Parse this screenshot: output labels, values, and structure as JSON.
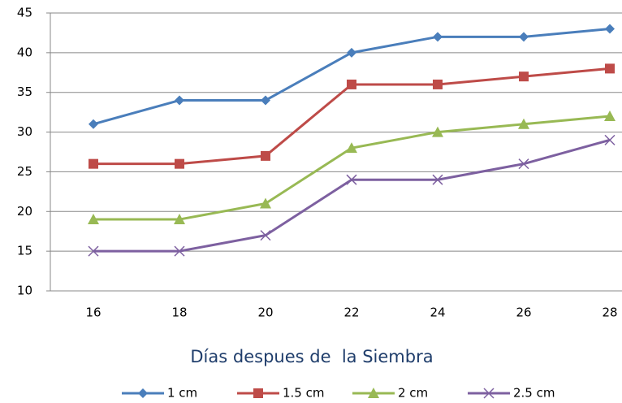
{
  "chart_data": {
    "type": "line",
    "x_label": "Días despues de  la Siembra",
    "categories": [
      16,
      18,
      20,
      22,
      24,
      26,
      28
    ],
    "series": [
      {
        "name": "1 cm",
        "color": "#4a7ebb",
        "marker": "diamond",
        "values": [
          31,
          34,
          34,
          40,
          42,
          42,
          43
        ]
      },
      {
        "name": "1.5 cm",
        "color": "#be4b48",
        "marker": "square",
        "values": [
          26,
          26,
          27,
          36,
          36,
          37,
          38
        ]
      },
      {
        "name": "2 cm",
        "color": "#98b954",
        "marker": "triangle",
        "values": [
          19,
          19,
          21,
          28,
          30,
          31,
          32
        ]
      },
      {
        "name": "2.5 cm",
        "color": "#7d60a0",
        "marker": "x",
        "values": [
          15,
          15,
          17,
          24,
          24,
          26,
          29
        ]
      }
    ],
    "ylim": [
      10,
      45
    ],
    "yticks": [
      10,
      15,
      20,
      25,
      30,
      35,
      40,
      45
    ],
    "grid": true,
    "legend": "bottom"
  }
}
